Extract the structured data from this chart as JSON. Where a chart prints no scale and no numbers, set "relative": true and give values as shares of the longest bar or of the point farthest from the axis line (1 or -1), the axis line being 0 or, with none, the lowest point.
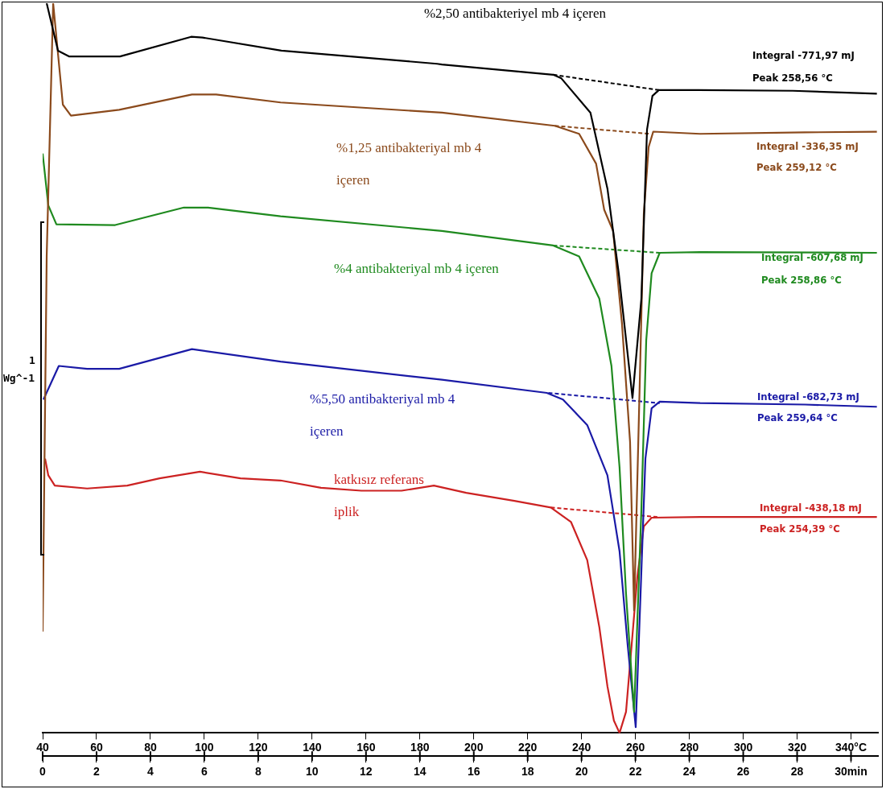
{
  "chart_data": {
    "type": "line",
    "relative": true,
    "ylabel": "Wg^-1",
    "xlim": [
      0,
      31
    ],
    "x2lim": [
      40,
      350
    ],
    "xticks": [
      0,
      2,
      4,
      6,
      8,
      10,
      12,
      14,
      16,
      18,
      20,
      22,
      24,
      26,
      28,
      {
        "value": 30,
        "label": "30min"
      }
    ],
    "x2ticks": [
      40,
      60,
      80,
      100,
      120,
      140,
      160,
      180,
      200,
      220,
      240,
      260,
      280,
      300,
      320,
      {
        "value": 340,
        "label": "340°C"
      }
    ],
    "grid": false,
    "legend": false,
    "marker": "none",
    "line_style": "solid",
    "series": [
      {
        "name": "%2,50 antibakteriyel mb 4 içeren",
        "color": "#000000",
        "x": [
          0.15,
          0.57,
          0.99,
          2.87,
          5.51,
          5.93,
          8.86,
          14.64,
          14.82,
          18.95,
          19.25,
          20.33,
          20.96,
          21.38,
          21.89,
          22.22,
          22.43,
          22.63,
          22.87,
          24.34,
          27.84,
          30.96
        ],
        "values": [
          1.0,
          0.935,
          0.927,
          0.927,
          0.954,
          0.953,
          0.935,
          0.917,
          0.916,
          0.902,
          0.897,
          0.85,
          0.746,
          0.63,
          0.459,
          0.595,
          0.827,
          0.873,
          0.881,
          0.881,
          0.88,
          0.876
        ]
      },
      {
        "name": "%1,25 antibakteriyal mb 4 içeren",
        "color": "#8b4a1c",
        "x": [
          0,
          0.15,
          0.39,
          0.75,
          1.05,
          2.84,
          5.54,
          6.44,
          8.83,
          14.82,
          19.01,
          19.91,
          20.54,
          20.84,
          21.17,
          21.5,
          21.8,
          21.95,
          22.16,
          22.31,
          22.49,
          22.66,
          24.4,
          28.29,
          30.96
        ],
        "values": [
          0.139,
          0.653,
          1.0,
          0.861,
          0.846,
          0.854,
          0.875,
          0.875,
          0.864,
          0.85,
          0.832,
          0.821,
          0.78,
          0.717,
          0.688,
          0.561,
          0.399,
          0.168,
          0.48,
          0.711,
          0.803,
          0.824,
          0.821,
          0.823,
          0.824
        ]
      },
      {
        "name": "%4 antibakteriyal mb 4 içeren",
        "color": "#1f8a1f",
        "x": [
          0,
          0.21,
          0.51,
          2.69,
          5.24,
          6.14,
          8.83,
          14.82,
          18.95,
          19.91,
          20.66,
          21.11,
          21.41,
          21.65,
          21.95,
          22.22,
          22.4,
          22.6,
          22.9,
          24.4,
          30.96
        ],
        "values": [
          0.794,
          0.723,
          0.697,
          0.696,
          0.72,
          0.72,
          0.708,
          0.688,
          0.668,
          0.653,
          0.595,
          0.503,
          0.364,
          0.191,
          0.029,
          0.306,
          0.538,
          0.63,
          0.658,
          0.659,
          0.658
        ]
      },
      {
        "name": "%5,50 antibakteriyal mb 4 içeren",
        "color": "#1a1aa6",
        "x": [
          0.03,
          0.6,
          1.65,
          2.84,
          5.54,
          8.83,
          14.82,
          18.71,
          19.31,
          20.21,
          20.96,
          21.41,
          21.71,
          22.01,
          22.19,
          22.37,
          22.6,
          22.9,
          24.4,
          28.29,
          30.96
        ],
        "values": [
          0.457,
          0.503,
          0.499,
          0.499,
          0.526,
          0.509,
          0.484,
          0.466,
          0.457,
          0.422,
          0.353,
          0.249,
          0.121,
          0.008,
          0.191,
          0.376,
          0.445,
          0.454,
          0.452,
          0.45,
          0.447
        ]
      },
      {
        "name": "katkısız referans iplik",
        "color": "#cc2222",
        "x": [
          0.09,
          0.21,
          0.45,
          1.65,
          3.14,
          4.34,
          5.84,
          7.34,
          8.83,
          10.33,
          11.83,
          13.32,
          14.52,
          15.72,
          17.51,
          18.86,
          19.61,
          20.21,
          20.66,
          20.96,
          21.2,
          21.41,
          21.65,
          21.86,
          22.07,
          22.31,
          22.6,
          24.4,
          28.29,
          30.96
        ],
        "values": [
          0.376,
          0.353,
          0.339,
          0.335,
          0.339,
          0.349,
          0.358,
          0.349,
          0.346,
          0.336,
          0.332,
          0.332,
          0.339,
          0.329,
          0.318,
          0.309,
          0.289,
          0.237,
          0.145,
          0.064,
          0.017,
          0,
          0.029,
          0.121,
          0.214,
          0.283,
          0.295,
          0.296,
          0.296,
          0.296
        ]
      },
      {
        "color": "#000000",
        "line_style": "dashed",
        "x": [
          18.95,
          22.87
        ],
        "values": [
          0.902,
          0.881
        ]
      },
      {
        "color": "#8b4a1c",
        "line_style": "dashed",
        "x": [
          19.01,
          22.55
        ],
        "values": [
          0.832,
          0.821
        ]
      },
      {
        "color": "#1f8a1f",
        "line_style": "dashed",
        "x": [
          18.95,
          22.9
        ],
        "values": [
          0.668,
          0.658
        ]
      },
      {
        "color": "#1a1aa6",
        "line_style": "dashed",
        "x": [
          18.77,
          22.9
        ],
        "values": [
          0.466,
          0.452
        ]
      },
      {
        "color": "#cc2222",
        "line_style": "dashed",
        "x": [
          18.86,
          22.81
        ],
        "values": [
          0.309,
          0.296
        ]
      }
    ],
    "annotations": [
      "1",
      "Integral -771,97 mJ",
      "Peak 258,56 °C",
      "Integral -336,35 mJ",
      "Peak 259,12 °C",
      "Integral -607,68 mJ",
      "Peak 258,86 °C",
      "Integral -682,73 mJ",
      "Peak 259,64 °C",
      "Integral -438,18 mJ",
      "Peak 254,39 °C"
    ]
  }
}
